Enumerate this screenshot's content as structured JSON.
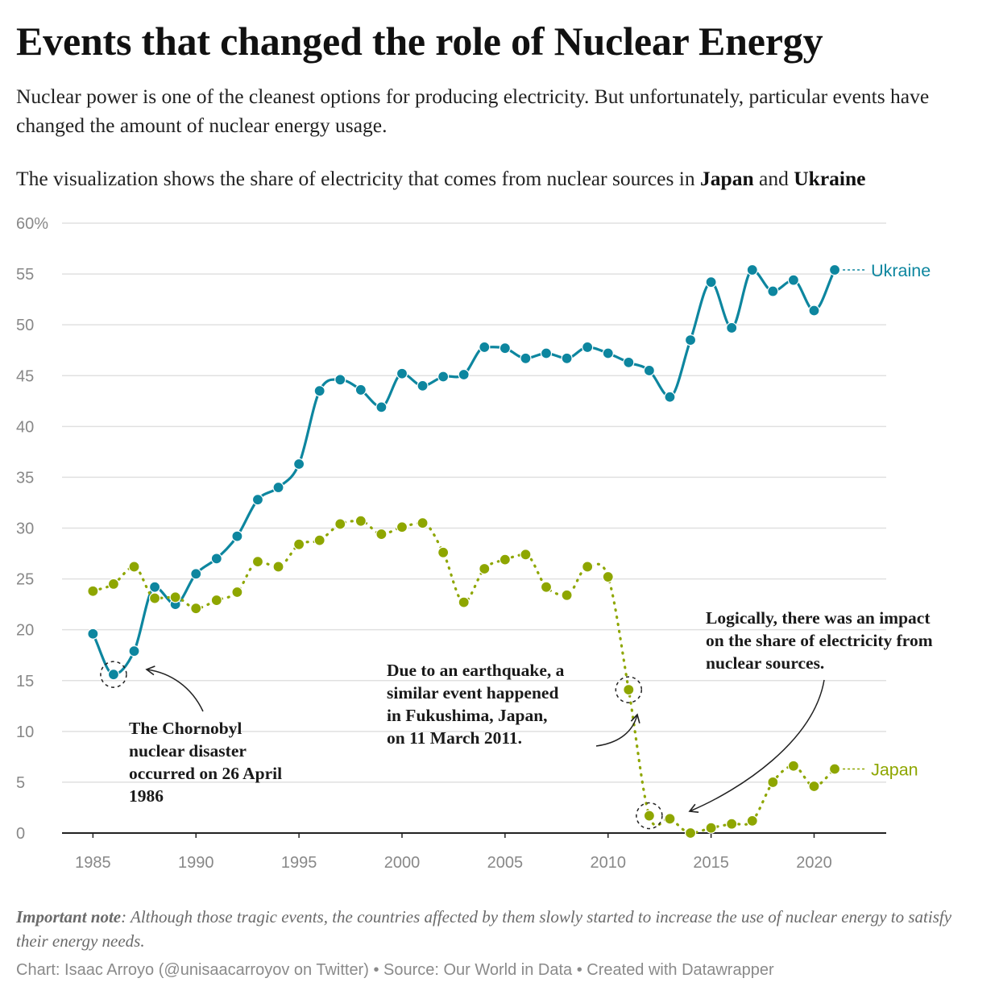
{
  "header": {
    "title": "Events that changed the role of Nuclear Energy",
    "subtitle": "Nuclear power is one of the cleanest options for producing electricity. But unfortunately, particular events have changed the amount of nuclear energy usage.",
    "desc_prefix": "The visualization shows the share of electricity that comes from nuclear sources in ",
    "desc_country1": "Japan",
    "desc_and": " and ",
    "desc_country2": "Ukraine"
  },
  "chart_data": {
    "type": "line",
    "unit_suffix": "%",
    "ylim": [
      0,
      60
    ],
    "xlim": [
      1983.5,
      2023.5
    ],
    "y_ticks": [
      0,
      5,
      10,
      15,
      20,
      25,
      30,
      35,
      40,
      45,
      50,
      55,
      60
    ],
    "x_ticks": [
      1985,
      1990,
      1995,
      2000,
      2005,
      2010,
      2015,
      2020
    ],
    "grid": true,
    "x": [
      1985,
      1986,
      1987,
      1988,
      1989,
      1990,
      1991,
      1992,
      1993,
      1994,
      1995,
      1996,
      1997,
      1998,
      1999,
      2000,
      2001,
      2002,
      2003,
      2004,
      2005,
      2006,
      2007,
      2008,
      2009,
      2010,
      2011,
      2012,
      2013,
      2014,
      2015,
      2016,
      2017,
      2018,
      2019,
      2020,
      2021
    ],
    "series": [
      {
        "name": "Ukraine",
        "color": "#0d869f",
        "dashed": false,
        "values": [
          19.6,
          15.6,
          17.9,
          24.2,
          22.5,
          25.5,
          27.0,
          29.2,
          32.8,
          34.0,
          36.3,
          43.5,
          44.6,
          43.6,
          41.9,
          45.2,
          44.0,
          44.9,
          45.1,
          47.8,
          47.7,
          46.7,
          47.2,
          46.7,
          47.8,
          47.2,
          46.3,
          45.5,
          42.9,
          48.5,
          54.2,
          49.7,
          55.4,
          53.3,
          54.4,
          51.4,
          55.4
        ]
      },
      {
        "name": "Japan",
        "color": "#8ea600",
        "dashed": true,
        "values": [
          23.8,
          24.5,
          26.2,
          23.1,
          23.2,
          22.1,
          22.9,
          23.7,
          26.7,
          26.2,
          28.4,
          28.8,
          30.4,
          30.7,
          29.4,
          30.1,
          30.5,
          27.6,
          22.7,
          26.0,
          26.9,
          27.4,
          24.2,
          23.4,
          26.2,
          25.2,
          14.1,
          1.7,
          1.4,
          0.0,
          0.5,
          0.9,
          1.2,
          5.0,
          6.6,
          4.6,
          6.3
        ]
      }
    ],
    "highlights": [
      {
        "series": "Ukraine",
        "x": 1986
      },
      {
        "series": "Japan",
        "x": 2011
      },
      {
        "series": "Japan",
        "x": 2012
      }
    ],
    "annotations": [
      {
        "lines": [
          "The Chornobyl",
          "nuclear disaster",
          "occurred on 26 April",
          "1986"
        ]
      },
      {
        "lines": [
          "Due to an earthquake, a",
          "similar event happened",
          "in Fukushima, Japan,",
          "on 11 March 2011."
        ]
      },
      {
        "lines": [
          "Logically, there was an impact",
          "on the share of electricity from",
          "nuclear sources."
        ]
      }
    ]
  },
  "footer": {
    "note_label": "Important note",
    "note_text": ": Although those tragic events, the countries affected by them slowly started to increase the use of nuclear energy to satisfy their energy needs.",
    "credit": "Chart: Isaac Arroyo (@unisaacarroyov on Twitter) • Source: Our World in Data • Created with Datawrapper"
  }
}
